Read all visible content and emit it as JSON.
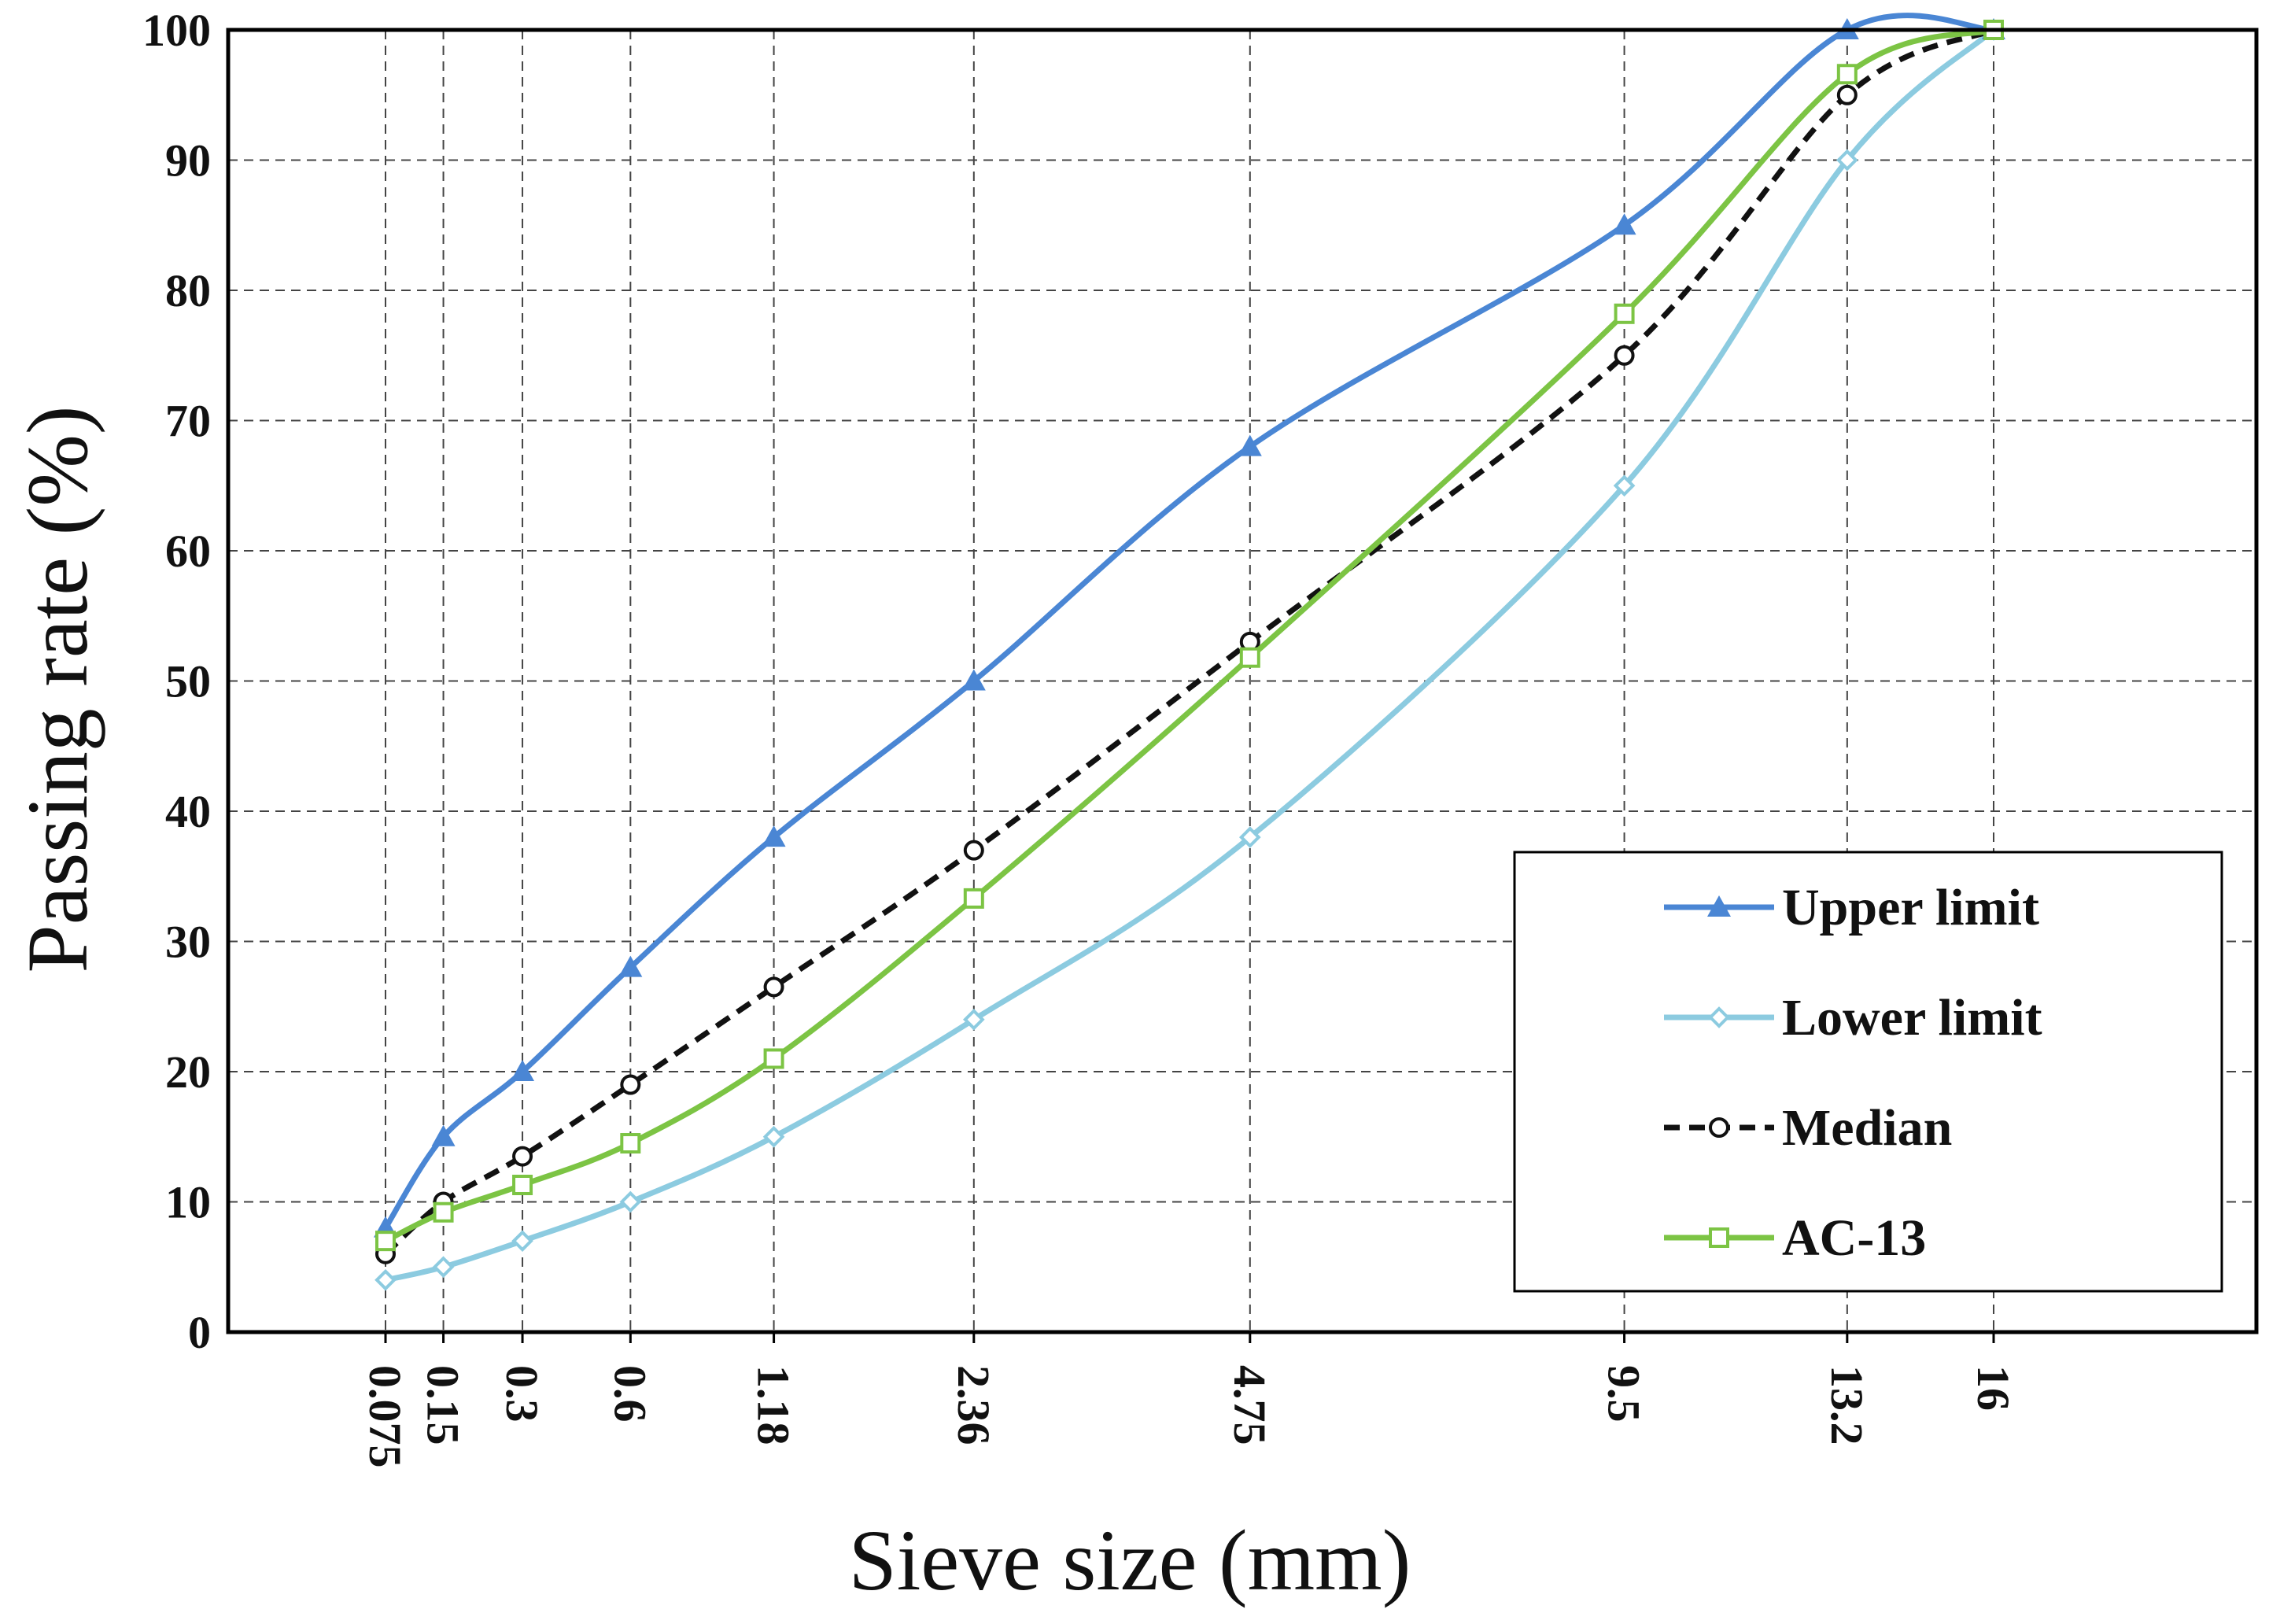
{
  "chart_data": {
    "type": "line",
    "title": "",
    "xlabel": "Sieve size (mm)",
    "ylabel": "Passing rate (%)",
    "x_scale": "power-0.45",
    "x": [
      0.075,
      0.15,
      0.3,
      0.6,
      1.18,
      2.36,
      4.75,
      9.5,
      13.2,
      16
    ],
    "x_tick_labels": [
      "0.075",
      "0.15",
      "0.3",
      "0.6",
      "1.18",
      "2.36",
      "4.75",
      "9.5",
      "13.2",
      "16"
    ],
    "ylim": [
      0,
      100
    ],
    "y_ticks": [
      0,
      10,
      20,
      30,
      40,
      50,
      60,
      70,
      80,
      90,
      100
    ],
    "grid": true,
    "legend_position": "bottom-right",
    "series": [
      {
        "name": "Upper limit",
        "color": "#4a86d4",
        "marker": "triangle",
        "dash": "solid",
        "values": [
          8,
          15,
          20,
          28,
          38,
          50,
          68,
          85,
          100,
          100
        ]
      },
      {
        "name": "Lower limit",
        "color": "#8ccbe0",
        "marker": "diamond",
        "dash": "solid",
        "values": [
          4,
          5,
          7,
          10,
          15,
          24,
          38,
          65,
          90,
          100
        ]
      },
      {
        "name": "Median",
        "color": "#111111",
        "marker": "circle",
        "dash": "dashed",
        "values": [
          6,
          10,
          13.5,
          19,
          26.5,
          37,
          53,
          75,
          95,
          100
        ]
      },
      {
        "name": "AC-13",
        "color": "#7cc444",
        "marker": "square",
        "dash": "solid",
        "values": [
          7,
          9.2,
          11.3,
          14.5,
          21,
          33.3,
          51.8,
          78.2,
          96.6,
          100
        ]
      }
    ]
  }
}
